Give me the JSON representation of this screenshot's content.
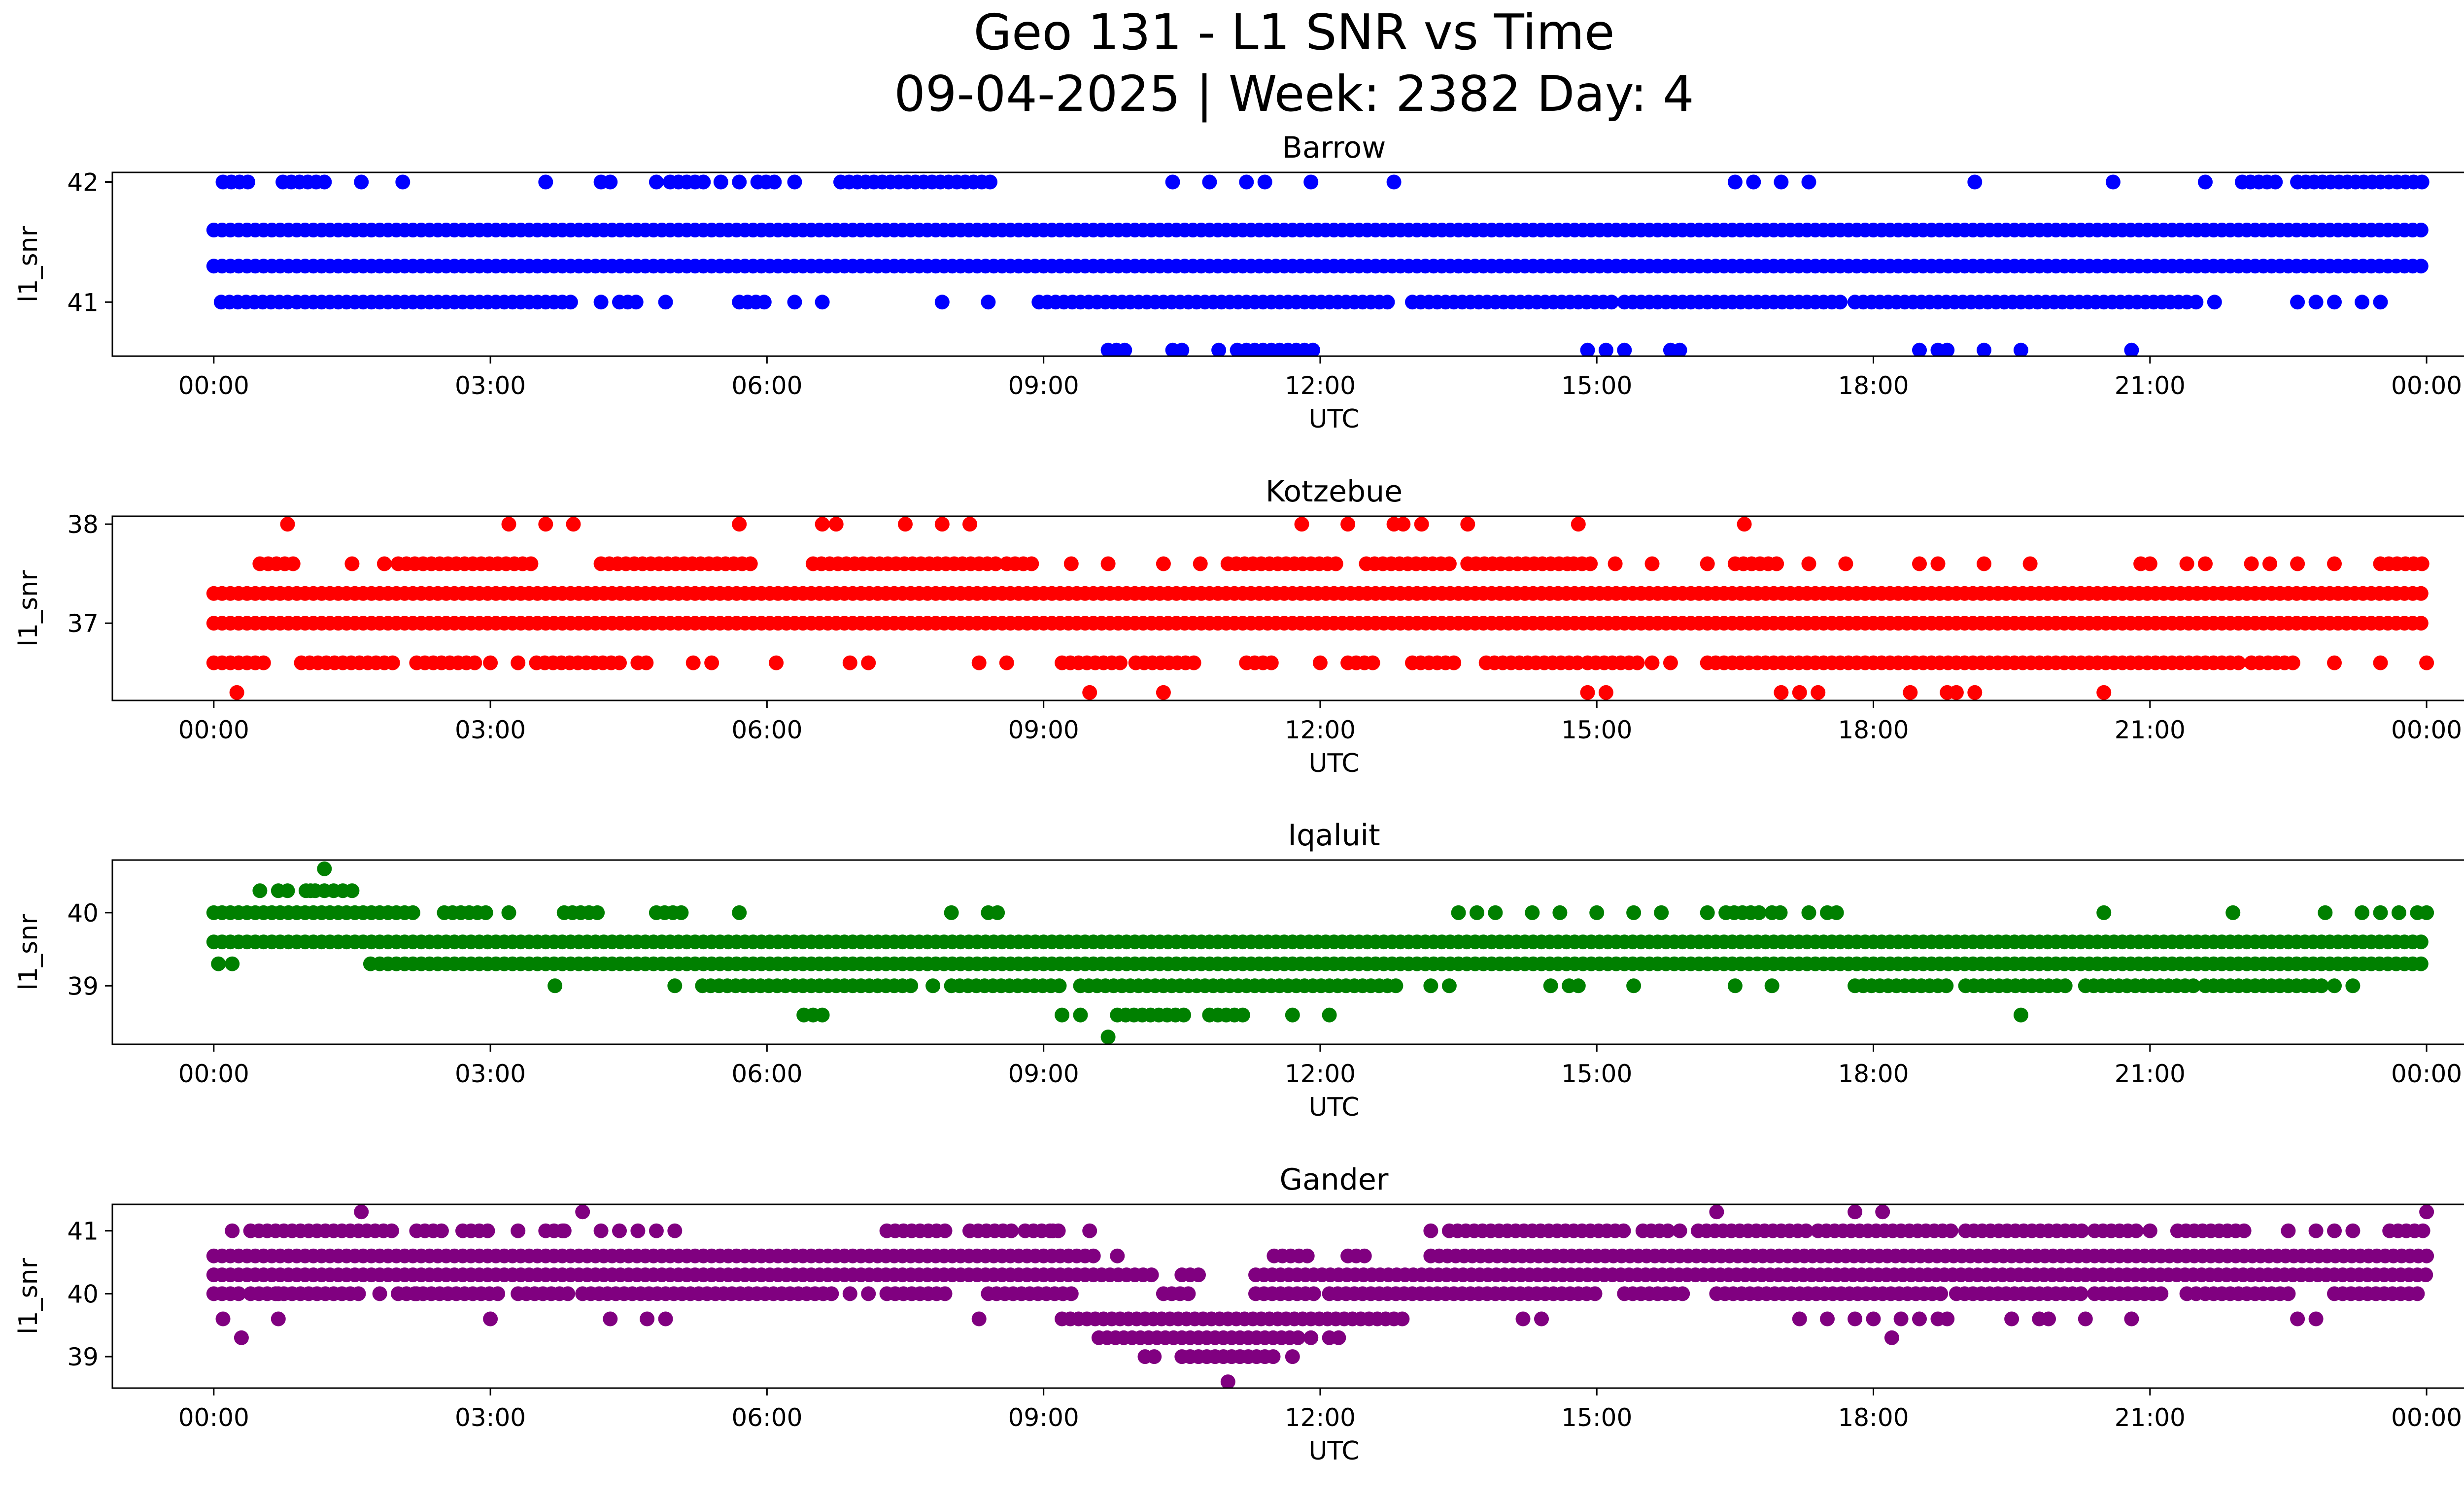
{
  "figure": {
    "title_line1": "Geo 131 - L1 SNR vs Time",
    "title_line2": "09-04-2025 | Week: 2382 Day: 4"
  },
  "chart_data": [
    {
      "type": "scatter",
      "title": "Barrow",
      "xlabel": "UTC",
      "ylabel": "l1_snr",
      "color": "#0000ff",
      "xlim_hours": [
        -1.1,
        25.4
      ],
      "ylim": [
        40.55,
        42.08
      ],
      "yticks": [
        41,
        42
      ],
      "ytick_labels": [
        "41",
        "42"
      ],
      "xticks_hours": [
        0,
        3,
        6,
        9,
        12,
        15,
        18,
        21,
        24
      ],
      "xtick_labels": [
        "00:00",
        "03:00",
        "06:00",
        "09:00",
        "12:00",
        "15:00",
        "18:00",
        "21:00",
        "00:00"
      ],
      "levels": [
        {
          "y": 41.6,
          "segments": [
            [
              0.0,
              24.0
            ]
          ]
        },
        {
          "y": 41.3,
          "segments": [
            [
              0.0,
              24.0
            ]
          ]
        },
        {
          "y": 41.0,
          "segments": [
            [
              0.08,
              0.8
            ],
            [
              0.9,
              3.9
            ],
            [
              4.4,
              4.6
            ],
            [
              5.7,
              6.0
            ],
            [
              8.95,
              12.8
            ],
            [
              13.0,
              15.2
            ],
            [
              15.3,
              17.7
            ],
            [
              17.8,
              21.4
            ]
          ],
          "points": [
            4.2,
            4.9,
            6.3,
            6.6,
            7.9,
            8.4,
            21.5,
            21.7,
            22.6,
            22.8,
            23.0,
            23.3,
            23.5
          ]
        },
        {
          "y": 42.0,
          "segments": [
            [
              0.1,
              0.4
            ],
            [
              0.75,
              1.2
            ],
            [
              4.95,
              5.35
            ],
            [
              5.9,
              6.1
            ],
            [
              6.8,
              8.5
            ],
            [
              22.0,
              22.4
            ],
            [
              22.6,
              23.95
            ]
          ],
          "points": [
            1.6,
            2.05,
            3.6,
            4.2,
            4.3,
            4.8,
            5.5,
            5.7,
            6.3,
            10.4,
            10.8,
            11.2,
            11.4,
            11.9,
            12.8,
            16.5,
            16.7,
            17.0,
            17.3,
            19.1,
            20.6,
            21.6
          ]
        },
        {
          "y": 40.6,
          "segments": [
            [
              9.7,
              9.9
            ],
            [
              11.2,
              12.0
            ]
          ],
          "points": [
            10.4,
            10.5,
            10.9,
            11.1,
            14.9,
            15.1,
            15.3,
            15.8,
            15.9,
            18.5,
            18.7,
            18.8,
            19.2,
            19.6,
            20.8
          ]
        }
      ]
    },
    {
      "type": "scatter",
      "title": "Kotzebue",
      "xlabel": "UTC",
      "ylabel": "l1_snr",
      "color": "#ff0000",
      "xlim_hours": [
        -1.1,
        25.4
      ],
      "ylim": [
        36.22,
        38.08
      ],
      "yticks": [
        37,
        38
      ],
      "ytick_labels": [
        "37",
        "38"
      ],
      "xticks_hours": [
        0,
        3,
        6,
        9,
        12,
        15,
        18,
        21,
        24
      ],
      "xtick_labels": [
        "00:00",
        "03:00",
        "06:00",
        "09:00",
        "12:00",
        "15:00",
        "18:00",
        "21:00",
        "00:00"
      ],
      "levels": [
        {
          "y": 37.3,
          "segments": [
            [
              0.0,
              24.0
            ]
          ]
        },
        {
          "y": 37.0,
          "segments": [
            [
              0.0,
              24.0
            ]
          ]
        },
        {
          "y": 36.6,
          "segments": [
            [
              0.0,
              0.6
            ],
            [
              0.95,
              2.0
            ],
            [
              2.2,
              2.9
            ],
            [
              3.5,
              4.4
            ],
            [
              4.6,
              4.7
            ],
            [
              9.2,
              9.9
            ],
            [
              10.0,
              10.7
            ],
            [
              11.2,
              11.5
            ],
            [
              12.3,
              12.6
            ],
            [
              13.0,
              13.5
            ],
            [
              13.8,
              14.8
            ],
            [
              14.9,
              15.5
            ],
            [
              16.2,
              22.0
            ],
            [
              22.1,
              22.6
            ]
          ],
          "points": [
            3.0,
            3.3,
            5.2,
            5.4,
            6.1,
            6.9,
            7.1,
            8.3,
            8.6,
            12.0,
            15.6,
            15.8,
            23.0,
            23.5,
            24.0
          ]
        },
        {
          "y": 37.6,
          "segments": [
            [
              0.5,
              0.9
            ],
            [
              2.0,
              3.5
            ],
            [
              4.2,
              5.9
            ],
            [
              6.5,
              8.5
            ],
            [
              8.6,
              8.9
            ],
            [
              11.0,
              12.2
            ],
            [
              12.5,
              13.4
            ],
            [
              13.6,
              14.7
            ],
            [
              14.75,
              15.0
            ],
            [
              16.5,
              17.0
            ],
            [
              23.5,
              23.95
            ]
          ],
          "points": [
            1.5,
            1.85,
            9.3,
            9.7,
            10.3,
            10.7,
            15.2,
            15.6,
            16.2,
            17.3,
            17.7,
            18.5,
            18.7,
            19.2,
            19.7,
            20.9,
            21.0,
            21.4,
            21.6,
            22.1,
            22.3,
            22.6,
            23.0
          ]
        },
        {
          "y": 38.0,
          "points": [
            0.8,
            3.2,
            3.6,
            3.9,
            5.7,
            6.6,
            6.75,
            7.5,
            7.9,
            8.2,
            11.8,
            12.3,
            12.8,
            12.9,
            13.1,
            13.6,
            14.8,
            16.6
          ]
        },
        {
          "y": 36.3,
          "points": [
            0.25,
            9.5,
            10.3,
            14.9,
            15.1,
            17.0,
            17.2,
            17.4,
            18.4,
            18.8,
            18.9,
            19.1,
            20.5
          ]
        }
      ]
    },
    {
      "type": "scatter",
      "title": "Iqaluit",
      "xlabel": "UTC",
      "ylabel": "l1_snr",
      "color": "#008000",
      "xlim_hours": [
        -1.1,
        25.4
      ],
      "ylim": [
        38.2,
        40.72
      ],
      "yticks": [
        39,
        40
      ],
      "ytick_labels": [
        "39",
        "40"
      ],
      "xticks_hours": [
        0,
        3,
        6,
        9,
        12,
        15,
        18,
        21,
        24
      ],
      "xtick_labels": [
        "00:00",
        "03:00",
        "06:00",
        "09:00",
        "12:00",
        "15:00",
        "18:00",
        "21:00",
        "00:00"
      ],
      "levels": [
        {
          "y": 40.0,
          "segments": [
            [
              0.0,
              2.2
            ],
            [
              2.5,
              3.0
            ],
            [
              3.8,
              4.2
            ],
            [
              4.8,
              5.1
            ],
            [
              16.4,
              16.8
            ],
            [
              16.9,
              17.0
            ]
          ],
          "points": [
            3.2,
            5.7,
            8.0,
            8.4,
            8.5,
            13.5,
            13.7,
            13.9,
            14.3,
            14.6,
            15.0,
            15.4,
            15.7,
            16.2,
            17.3,
            17.5,
            17.6,
            20.5,
            21.9,
            22.9,
            23.3,
            23.5,
            23.7,
            23.9,
            24.0
          ]
        },
        {
          "y": 39.6,
          "segments": [
            [
              0.0,
              24.0
            ]
          ]
        },
        {
          "y": 39.3,
          "segments": [
            [
              1.8,
              24.0
            ]
          ],
          "points": [
            0.05,
            0.2,
            1.7
          ]
        },
        {
          "y": 39.0,
          "segments": [
            [
              5.3,
              6.2
            ],
            [
              6.3,
              7.6
            ],
            [
              8.0,
              9.2
            ],
            [
              9.4,
              12.9
            ],
            [
              17.8,
              18.8
            ],
            [
              19.0,
              20.1
            ],
            [
              20.3,
              21.5
            ],
            [
              21.6,
              22.9
            ]
          ],
          "points": [
            3.7,
            5.0,
            7.8,
            13.2,
            13.4,
            14.5,
            14.7,
            14.8,
            15.4,
            16.5,
            16.9,
            23.0,
            23.2
          ]
        },
        {
          "y": 40.3,
          "points": [
            0.5,
            0.7,
            0.8,
            1.0,
            1.05,
            1.1,
            1.2,
            1.3,
            1.4,
            1.5
          ]
        },
        {
          "y": 38.6,
          "segments": [
            [
              9.8,
              10.6
            ],
            [
              10.8,
              11.2
            ]
          ],
          "points": [
            6.4,
            6.5,
            6.6,
            9.2,
            9.4,
            11.7,
            12.1,
            19.6
          ]
        },
        {
          "y": 40.6,
          "points": [
            1.2
          ]
        },
        {
          "y": 38.3,
          "points": [
            9.7
          ]
        }
      ]
    },
    {
      "type": "scatter",
      "title": "Gander",
      "xlabel": "UTC",
      "ylabel": "l1_snr",
      "color": "#800080",
      "xlim_hours": [
        -1.1,
        25.4
      ],
      "ylim": [
        38.5,
        41.42
      ],
      "yticks": [
        39,
        40,
        41
      ],
      "ytick_labels": [
        "39",
        "40",
        "41"
      ],
      "xticks_hours": [
        0,
        3,
        6,
        9,
        12,
        15,
        18,
        21,
        24
      ],
      "xtick_labels": [
        "00:00",
        "03:00",
        "06:00",
        "09:00",
        "12:00",
        "15:00",
        "18:00",
        "21:00",
        "00:00"
      ],
      "levels": [
        {
          "y": 40.6,
          "segments": [
            [
              0.0,
              9.6
            ],
            [
              11.5,
              11.9
            ],
            [
              12.3,
              12.5
            ],
            [
              13.2,
              24.0
            ]
          ],
          "points": [
            9.8
          ]
        },
        {
          "y": 40.3,
          "segments": [
            [
              0.0,
              10.2
            ],
            [
              10.5,
              10.7
            ],
            [
              11.3,
              24.0
            ]
          ]
        },
        {
          "y": 40.0,
          "segments": [
            [
              0.0,
              0.3
            ],
            [
              0.4,
              1.6
            ],
            [
              2.0,
              3.1
            ],
            [
              3.3,
              3.9
            ],
            [
              4.0,
              6.7
            ],
            [
              7.3,
              8.0
            ],
            [
              8.4,
              9.3
            ],
            [
              10.3,
              10.6
            ],
            [
              11.3,
              12.0
            ],
            [
              12.1,
              15.0
            ],
            [
              15.3,
              16.0
            ],
            [
              16.3,
              18.8
            ],
            [
              18.9,
              20.3
            ],
            [
              20.4,
              21.2
            ],
            [
              21.6,
              22.5
            ],
            [
              23.0,
              23.9
            ]
          ],
          "points": [
            0.7,
            1.8,
            2.2,
            6.9,
            7.1,
            21.4,
            21.5
          ]
        },
        {
          "y": 39.6,
          "segments": [
            [
              9.2,
              12.9
            ]
          ],
          "points": [
            0.1,
            0.7,
            3.0,
            4.3,
            4.7,
            4.9,
            8.3,
            14.2,
            14.4,
            17.2,
            17.5,
            17.8,
            18.0,
            18.3,
            18.5,
            18.7,
            18.8,
            19.5,
            19.8,
            19.9,
            20.3,
            20.8,
            22.6,
            22.8
          ]
        },
        {
          "y": 41.0,
          "segments": [
            [
              0.4,
              2.0
            ],
            [
              2.2,
              2.5
            ],
            [
              2.7,
              3.0
            ],
            [
              3.6,
              3.8
            ],
            [
              7.3,
              8.0
            ],
            [
              8.2,
              8.7
            ],
            [
              8.8,
              9.2
            ],
            [
              13.4,
              15.3
            ],
            [
              15.5,
              15.8
            ],
            [
              16.1,
              17.3
            ],
            [
              17.4,
              18.9
            ],
            [
              19.0,
              20.3
            ],
            [
              20.4,
              20.9
            ],
            [
              21.3,
              22.1
            ],
            [
              23.6,
              24.0
            ]
          ],
          "points": [
            0.2,
            3.3,
            3.8,
            4.2,
            4.4,
            4.6,
            4.8,
            5.0,
            9.1,
            9.5,
            13.2,
            15.9,
            21.0,
            22.5,
            22.8,
            23.0,
            23.2
          ]
        },
        {
          "y": 39.3,
          "segments": [
            [
              9.6,
              11.8
            ]
          ],
          "points": [
            0.3,
            11.9,
            12.1,
            12.2,
            18.2
          ]
        },
        {
          "y": 39.0,
          "segments": [
            [
              10.5,
              11.5
            ]
          ],
          "points": [
            10.1,
            10.2,
            11.7
          ]
        },
        {
          "y": 41.3,
          "points": [
            1.6,
            4.0,
            16.3,
            17.8,
            18.1,
            24.0
          ]
        },
        {
          "y": 38.6,
          "points": [
            11.0
          ]
        }
      ]
    }
  ]
}
